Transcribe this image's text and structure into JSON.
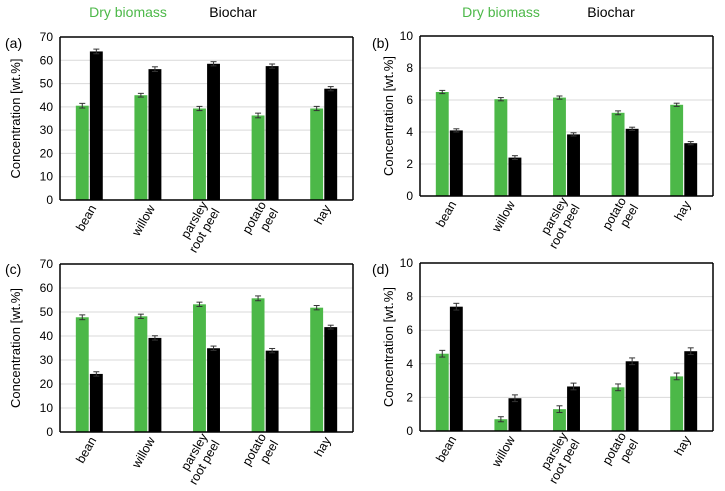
{
  "colors": {
    "dry": "#4cb848",
    "biochar": "#000000",
    "axis": "#000000",
    "grid": "#d9d9d9"
  },
  "legend": {
    "dry_label": "Dry biomass",
    "biochar_label": "Biochar"
  },
  "chart_data": [
    {
      "type": "bar",
      "panel_label": "(a)",
      "ylabel": "Concentration [wt.%]",
      "ylim": [
        0,
        70
      ],
      "yticks": [
        0,
        10,
        20,
        30,
        40,
        50,
        60,
        70
      ],
      "grid": true,
      "categories": [
        [
          "bean"
        ],
        [
          "willow"
        ],
        [
          "parsley",
          "root peel"
        ],
        [
          "potato",
          "peel"
        ],
        [
          "hay"
        ]
      ],
      "series": [
        {
          "name": "Dry biomass",
          "values": [
            40.5,
            45,
            39.3,
            36.3,
            39.3
          ],
          "errors": [
            1,
            0.8,
            0.9,
            1,
            0.9
          ]
        },
        {
          "name": "Biochar",
          "values": [
            63.8,
            56.2,
            58.5,
            57.5,
            47.8
          ],
          "errors": [
            1,
            1,
            0.9,
            0.9,
            0.9
          ]
        }
      ]
    },
    {
      "type": "bar",
      "panel_label": "(b)",
      "ylabel": "Concentration [wt.%]",
      "ylim": [
        0,
        10
      ],
      "yticks": [
        0,
        2,
        4,
        6,
        8,
        10
      ],
      "grid": true,
      "categories": [
        [
          "bean"
        ],
        [
          "willow"
        ],
        [
          "parsley",
          "root peel"
        ],
        [
          "potato",
          "peel"
        ],
        [
          "hay"
        ]
      ],
      "series": [
        {
          "name": "Dry biomass",
          "values": [
            6.5,
            6.05,
            6.15,
            5.2,
            5.7
          ],
          "errors": [
            0.1,
            0.1,
            0.1,
            0.12,
            0.1
          ]
        },
        {
          "name": "Biochar",
          "values": [
            4.1,
            2.4,
            3.85,
            4.2,
            3.3
          ],
          "errors": [
            0.1,
            0.12,
            0.1,
            0.1,
            0.1
          ]
        }
      ]
    },
    {
      "type": "bar",
      "panel_label": "(c)",
      "ylabel": "Concentration [wt.%]",
      "ylim": [
        0,
        70
      ],
      "yticks": [
        0,
        10,
        20,
        30,
        40,
        50,
        60,
        70
      ],
      "grid": true,
      "categories": [
        [
          "bean"
        ],
        [
          "willow"
        ],
        [
          "parsley",
          "root peel"
        ],
        [
          "potato",
          "peel"
        ],
        [
          "hay"
        ]
      ],
      "series": [
        {
          "name": "Dry biomass",
          "values": [
            47.8,
            48.2,
            53.2,
            55.7,
            51.8
          ],
          "errors": [
            1,
            0.9,
            0.9,
            1,
            0.9
          ]
        },
        {
          "name": "Biochar",
          "values": [
            24.2,
            39.2,
            34.9,
            33.9,
            43.7
          ],
          "errors": [
            0.9,
            0.9,
            0.9,
            0.9,
            0.8
          ]
        }
      ]
    },
    {
      "type": "bar",
      "panel_label": "(d)",
      "ylabel": "Concentration [wt.%]",
      "ylim": [
        0,
        10
      ],
      "yticks": [
        0,
        2,
        4,
        6,
        8,
        10
      ],
      "grid": true,
      "categories": [
        [
          "bean"
        ],
        [
          "willow"
        ],
        [
          "parsley",
          "root peel"
        ],
        [
          "potato",
          "peel"
        ],
        [
          "hay"
        ]
      ],
      "series": [
        {
          "name": "Dry biomass",
          "values": [
            4.6,
            0.7,
            1.3,
            2.6,
            3.25
          ],
          "errors": [
            0.2,
            0.15,
            0.2,
            0.2,
            0.2
          ]
        },
        {
          "name": "Biochar",
          "values": [
            7.4,
            1.95,
            2.65,
            4.15,
            4.75
          ],
          "errors": [
            0.2,
            0.2,
            0.2,
            0.2,
            0.2
          ]
        }
      ]
    }
  ]
}
